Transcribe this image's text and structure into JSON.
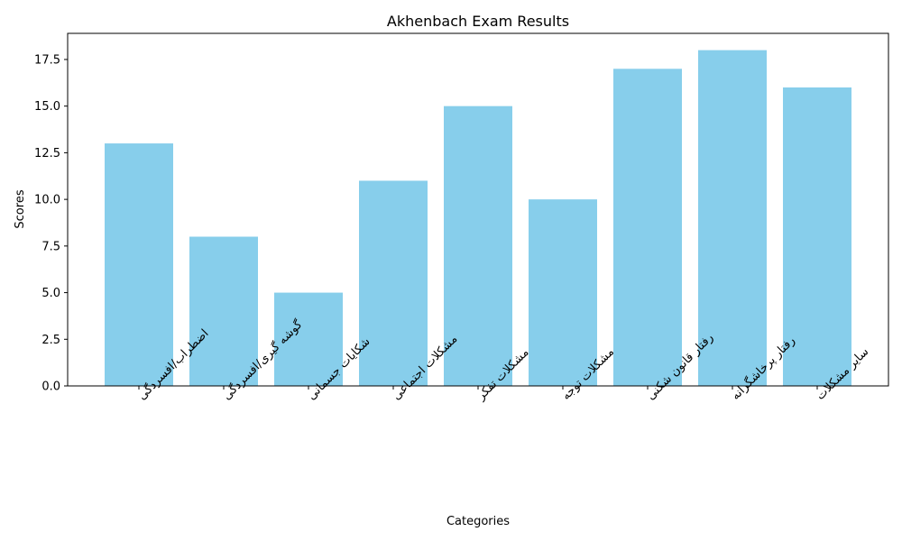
{
  "chart_data": {
    "type": "bar",
    "title": "Akhenbach Exam Results",
    "xlabel": "Categories",
    "ylabel": "Scores",
    "categories": [
      "اضطراب/افسردگی",
      "گوشه گیری/افسردگی",
      "شکایات جسمانی",
      "مشکلات اجتماعی",
      "مشکلات تفکر",
      "مشکلات توجه",
      "رفتار قانون شکنی",
      "رفتار پرخاشگرانه",
      "سایر مشکلات"
    ],
    "values": [
      13,
      8,
      5,
      11,
      15,
      10,
      17,
      18,
      16
    ],
    "ylim": [
      0,
      18.9
    ],
    "yticks": [
      "0.0",
      "2.5",
      "5.0",
      "7.5",
      "10.0",
      "12.5",
      "15.0",
      "17.5"
    ],
    "grid": false,
    "bar_color": "#87ceeb"
  }
}
